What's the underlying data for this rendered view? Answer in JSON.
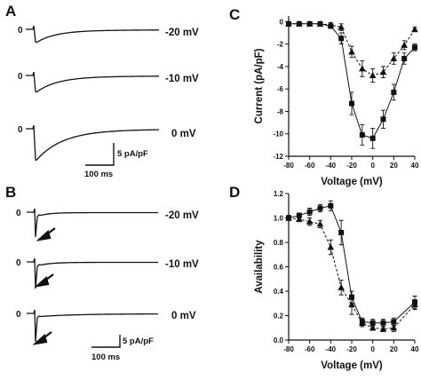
{
  "panels": {
    "A": {
      "letter": "A",
      "traces": [
        {
          "zero": "0",
          "label": "-20 mV"
        },
        {
          "zero": "0",
          "label": "-10 mV"
        },
        {
          "zero": "0",
          "label": "0 mV"
        }
      ],
      "scale": {
        "y_label": "5 pA/pF",
        "x_label": "100 ms"
      }
    },
    "B": {
      "letter": "B",
      "traces": [
        {
          "zero": "0",
          "label": "-20 mV"
        },
        {
          "zero": "0",
          "label": "-10 mV"
        },
        {
          "zero": "0",
          "label": "0 mV"
        }
      ],
      "scale": {
        "y_label": "5 pA/pF",
        "x_label": "100 ms"
      }
    },
    "C": {
      "letter": "C"
    },
    "D": {
      "letter": "D"
    }
  },
  "chart_data": [
    {
      "panel": "C",
      "type": "line",
      "xlabel": "Voltage (mV)",
      "ylabel": "Current (pA/pF)",
      "xlim": [
        -80,
        40
      ],
      "ylim": [
        -12,
        0.5
      ],
      "xticks": [
        -80,
        -60,
        -40,
        -20,
        0,
        20,
        40
      ],
      "yticks": [
        0,
        -2,
        -4,
        -6,
        -8,
        -10,
        -12
      ],
      "grid": false,
      "series": [
        {
          "marker": "square",
          "line": "solid",
          "color": "#111111",
          "x": [
            -80,
            -70,
            -60,
            -50,
            -40,
            -30,
            -20,
            -10,
            0,
            10,
            20,
            30,
            40
          ],
          "y": [
            -0.2,
            -0.2,
            -0.2,
            -0.2,
            -0.4,
            -1.5,
            -7.3,
            -10.1,
            -10.4,
            -8.7,
            -6.3,
            -3.3,
            -2.3
          ],
          "err": [
            0.1,
            0.1,
            0.1,
            0.1,
            0.2,
            0.5,
            1.0,
            0.9,
            0.9,
            0.8,
            0.7,
            0.5,
            0.3
          ]
        },
        {
          "marker": "triangle",
          "line": "dashed",
          "color": "#111111",
          "x": [
            -80,
            -70,
            -60,
            -50,
            -40,
            -30,
            -20,
            -10,
            0,
            10,
            20,
            30,
            40
          ],
          "y": [
            -0.2,
            -0.2,
            -0.2,
            -0.2,
            -0.3,
            -0.5,
            -2.7,
            -4.2,
            -4.8,
            -4.5,
            -3.3,
            -2.1,
            -0.7
          ],
          "err": [
            0.1,
            0.1,
            0.1,
            0.1,
            0.2,
            0.3,
            0.5,
            0.7,
            0.6,
            0.5,
            0.5,
            0.4,
            0.2
          ]
        }
      ]
    },
    {
      "panel": "D",
      "type": "line",
      "xlabel": "Voltage (mV)",
      "ylabel": "Availability",
      "xlim": [
        -80,
        40
      ],
      "ylim": [
        0,
        1.2
      ],
      "xticks": [
        -80,
        -60,
        -40,
        -20,
        0,
        20,
        40
      ],
      "yticks": [
        0.0,
        0.2,
        0.4,
        0.6,
        0.8,
        1.0,
        1.2
      ],
      "grid": false,
      "series": [
        {
          "marker": "square",
          "line": "solid",
          "color": "#111111",
          "x": [
            -80,
            -70,
            -60,
            -50,
            -40,
            -30,
            -20,
            -10,
            0,
            10,
            20,
            40
          ],
          "y": [
            1.0,
            1.02,
            1.05,
            1.08,
            1.1,
            0.88,
            0.35,
            0.15,
            0.14,
            0.14,
            0.15,
            0.31
          ],
          "err": [
            0.02,
            0.02,
            0.03,
            0.03,
            0.04,
            0.1,
            0.05,
            0.03,
            0.03,
            0.03,
            0.03,
            0.05
          ]
        },
        {
          "marker": "triangle",
          "line": "dashed",
          "color": "#111111",
          "x": [
            -80,
            -70,
            -60,
            -50,
            -40,
            -30,
            -20,
            -10,
            0,
            10,
            20,
            40
          ],
          "y": [
            1.0,
            0.99,
            0.97,
            0.95,
            0.76,
            0.43,
            0.29,
            0.14,
            0.1,
            0.09,
            0.1,
            0.29
          ],
          "err": [
            0.02,
            0.02,
            0.03,
            0.03,
            0.06,
            0.06,
            0.08,
            0.03,
            0.02,
            0.02,
            0.03,
            0.04
          ]
        }
      ]
    }
  ]
}
